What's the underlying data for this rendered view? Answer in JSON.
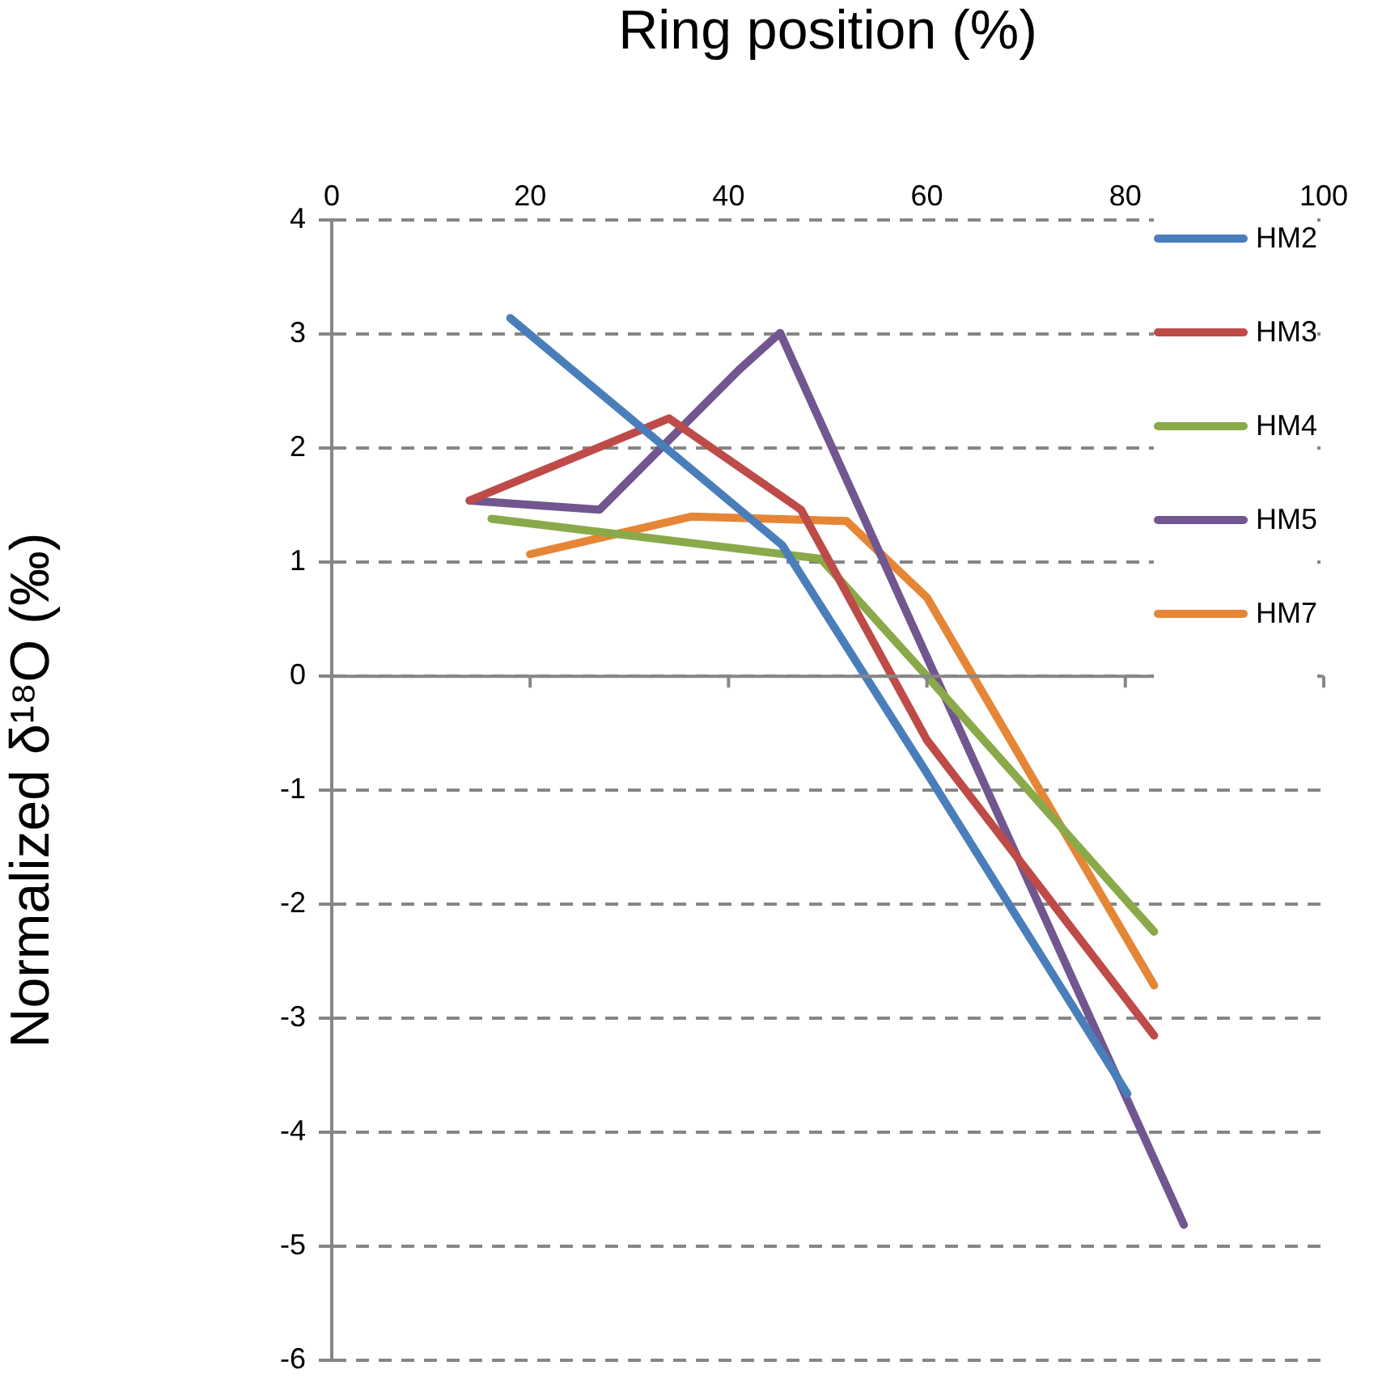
{
  "chart_data": {
    "type": "line",
    "xlabel": "Ring position (%)",
    "ylabel": "Normalized δ¹⁸O (‰)",
    "xlim": [
      0,
      100
    ],
    "xticks": [
      0,
      20,
      40,
      60,
      80,
      100
    ],
    "ylim": [
      -6,
      4
    ],
    "yticks": [
      -6,
      -5,
      -4,
      -3,
      -2,
      -1,
      0,
      1,
      2,
      3,
      4
    ],
    "grid": "y",
    "legend": "top right",
    "marker": "none",
    "line_style": "solid",
    "series": [
      {
        "name": "HM2",
        "color": "#4a7ebb",
        "x": [
          18.0,
          45.4,
          60.0,
          80.2
        ],
        "values": [
          3.14,
          1.15,
          -0.85,
          -3.66
        ]
      },
      {
        "name": "HM3",
        "color": "#be4b48",
        "x": [
          13.9,
          34.0,
          47.3,
          60.0,
          82.9
        ],
        "values": [
          1.54,
          2.26,
          1.46,
          -0.56,
          -3.15
        ]
      },
      {
        "name": "HM4",
        "color": "#8aaa4a",
        "x": [
          16.1,
          49.3,
          60.0,
          82.9
        ],
        "values": [
          1.38,
          1.03,
          0.0,
          -2.24
        ]
      },
      {
        "name": "HM5",
        "color": "#71568f",
        "x": [
          13.9,
          27.0,
          41.1,
          45.2,
          85.9
        ],
        "values": [
          1.54,
          1.46,
          2.69,
          3.01,
          -4.81
        ]
      },
      {
        "name": "HM7",
        "color": "#e58637",
        "x": [
          20.0,
          36.3,
          51.9,
          60.0,
          82.9
        ],
        "values": [
          1.07,
          1.4,
          1.36,
          0.69,
          -2.71
        ]
      }
    ]
  }
}
